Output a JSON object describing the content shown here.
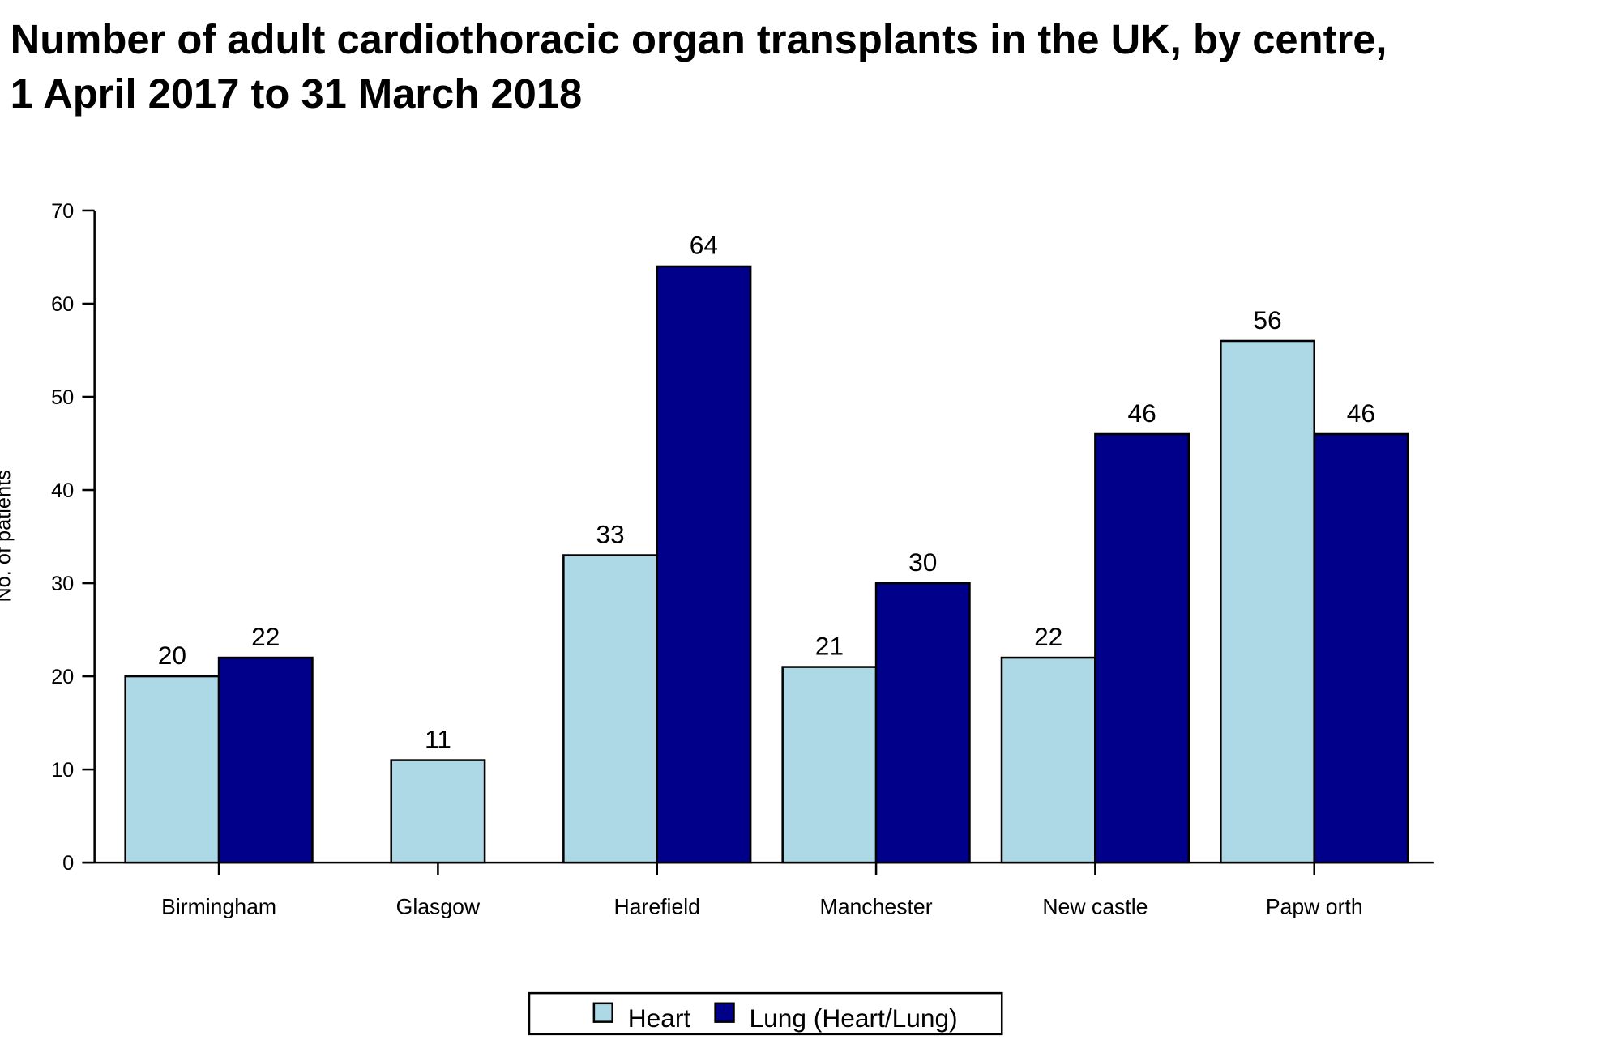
{
  "chart_data": {
    "type": "bar",
    "title": [
      "Number of adult cardiothoracic organ transplants in the UK, by centre,",
      "1 April 2017 to 31 March 2018"
    ],
    "y_label": "No. of patients",
    "categories": [
      "Birmingham",
      "Glasgow",
      "Harefield",
      "Manchester",
      "New castle",
      "Papw orth"
    ],
    "series": [
      {
        "name": "Heart",
        "color": "#add8e6",
        "values": [
          20,
          11,
          33,
          21,
          22,
          56
        ]
      },
      {
        "name": "Lung (Heart/Lung)",
        "color": "#00008b",
        "values": [
          22,
          null,
          64,
          30,
          46,
          46
        ]
      }
    ],
    "ylim": [
      0,
      70
    ],
    "yticks": [
      0,
      10,
      20,
      30,
      40,
      50,
      60,
      70
    ],
    "legend": "bottom"
  }
}
